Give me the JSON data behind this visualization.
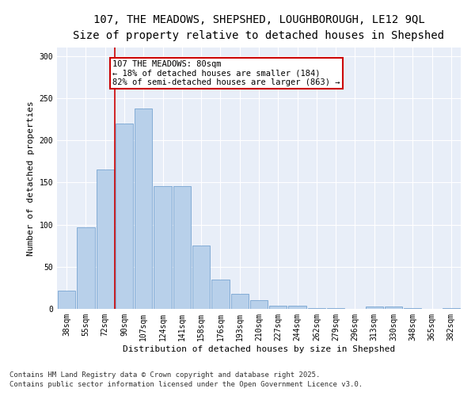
{
  "title_line1": "107, THE MEADOWS, SHEPSHED, LOUGHBOROUGH, LE12 9QL",
  "title_line2": "Size of property relative to detached houses in Shepshed",
  "xlabel": "Distribution of detached houses by size in Shepshed",
  "ylabel": "Number of detached properties",
  "bar_labels": [
    "38sqm",
    "55sqm",
    "72sqm",
    "90sqm",
    "107sqm",
    "124sqm",
    "141sqm",
    "158sqm",
    "176sqm",
    "193sqm",
    "210sqm",
    "227sqm",
    "244sqm",
    "262sqm",
    "279sqm",
    "296sqm",
    "313sqm",
    "330sqm",
    "348sqm",
    "365sqm",
    "382sqm"
  ],
  "bar_values": [
    22,
    97,
    165,
    220,
    238,
    146,
    146,
    75,
    35,
    18,
    10,
    4,
    4,
    1,
    1,
    0,
    3,
    3,
    1,
    0,
    1
  ],
  "bar_color": "#b8d0ea",
  "bar_edge_color": "#6699cc",
  "property_line_label": "107 THE MEADOWS: 80sqm",
  "annotation_line1": "← 18% of detached houses are smaller (184)",
  "annotation_line2": "82% of semi-detached houses are larger (863) →",
  "annotation_box_color": "#ffffff",
  "annotation_box_edge_color": "#cc0000",
  "vline_color": "#cc0000",
  "vline_x_index": 2.5,
  "ylim": [
    0,
    310
  ],
  "yticks": [
    0,
    50,
    100,
    150,
    200,
    250,
    300
  ],
  "background_color": "#e8eef8",
  "footer_line1": "Contains HM Land Registry data © Crown copyright and database right 2025.",
  "footer_line2": "Contains public sector information licensed under the Open Government Licence v3.0.",
  "title_fontsize": 10,
  "subtitle_fontsize": 9,
  "axis_label_fontsize": 8,
  "tick_fontsize": 7,
  "annotation_fontsize": 7.5,
  "footer_fontsize": 6.5
}
